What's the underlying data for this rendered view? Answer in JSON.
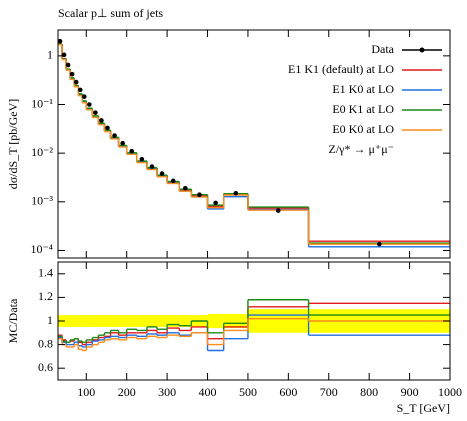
{
  "chart_data": [
    {
      "type": "histogram",
      "title": "Scalar p⊥ sum of jets",
      "y_label": "dσ/dS_T [pb/GeV]",
      "bins": [
        30,
        40,
        50,
        60,
        70,
        80,
        90,
        100,
        115,
        130,
        145,
        160,
        180,
        200,
        225,
        250,
        275,
        300,
        330,
        360,
        400,
        440,
        500,
        650,
        1000
      ],
      "xlim": [
        30,
        1000
      ],
      "xticks": [
        100,
        200,
        300,
        400,
        500,
        600,
        700,
        800,
        900,
        1000
      ],
      "xtick_labels": false,
      "log_y": true,
      "ylim": [
        7e-05,
        3.4
      ],
      "yticks": [
        {
          "value": 0.0001,
          "label": "10⁻⁴"
        },
        {
          "value": 0.001,
          "label": "10⁻³"
        },
        {
          "value": 0.01,
          "label": "10⁻²"
        },
        {
          "value": 0.1,
          "label": "10⁻¹"
        },
        1
      ],
      "legend": "upper right",
      "annotation": "Z/γ* → μ⁺μ⁻",
      "series": [
        {
          "name": "Data",
          "color": "#000000",
          "style": "points",
          "values": [
            2.0,
            1.05,
            0.65,
            0.42,
            0.29,
            0.2,
            0.145,
            0.1,
            0.068,
            0.047,
            0.033,
            0.023,
            0.016,
            0.011,
            0.0075,
            0.0053,
            0.0038,
            0.0027,
            0.0019,
            0.0014,
            0.00095,
            0.0015,
            0.00066,
            0.000135
          ]
        },
        {
          "name": "E1 K1 (default) at LO",
          "color": "#e41a1c",
          "style": "step",
          "values": [
            1.76,
            0.88,
            0.533,
            0.349,
            0.247,
            0.164,
            0.116,
            0.082,
            0.0571,
            0.0404,
            0.0287,
            0.0207,
            0.0141,
            0.0099,
            0.00675,
            0.00488,
            0.00342,
            0.00254,
            0.00175,
            0.00133,
            0.000808,
            0.001425,
            0.000739,
            0.000155
          ]
        },
        {
          "name": "E1 K0 at LO",
          "color": "#1f6fe0",
          "style": "step",
          "values": [
            1.72,
            0.861,
            0.52,
            0.336,
            0.238,
            0.158,
            0.113,
            0.08,
            0.0564,
            0.0395,
            0.0284,
            0.02,
            0.0138,
            0.00968,
            0.00653,
            0.00472,
            0.00334,
            0.00243,
            0.00167,
            0.00126,
            0.000713,
            0.001275,
            0.000693,
            0.000119
          ]
        },
        {
          "name": "E0 K1 at LO",
          "color": "#1a8a1a",
          "style": "step",
          "values": [
            1.74,
            0.872,
            0.533,
            0.353,
            0.247,
            0.166,
            0.119,
            0.084,
            0.0585,
            0.0414,
            0.0297,
            0.0212,
            0.0144,
            0.0102,
            0.0069,
            0.00504,
            0.00353,
            0.00262,
            0.00182,
            0.0014,
            0.000855,
            0.00147,
            0.000779,
            0.000142
          ]
        },
        {
          "name": "E0 K0 at LO",
          "color": "#ff8c1a",
          "style": "step",
          "values": [
            1.7,
            0.84,
            0.507,
            0.328,
            0.232,
            0.152,
            0.109,
            0.078,
            0.0544,
            0.0385,
            0.0277,
            0.0196,
            0.0134,
            0.00946,
            0.00638,
            0.00461,
            0.00327,
            0.00238,
            0.00165,
            0.00126,
            0.00076,
            0.00138,
            0.000673,
            0.000135
          ]
        }
      ]
    },
    {
      "type": "histogram",
      "y_label": "MC/Data",
      "x_label": "S_T [GeV]",
      "bins": [
        30,
        40,
        50,
        60,
        70,
        80,
        90,
        100,
        115,
        130,
        145,
        160,
        180,
        200,
        225,
        250,
        275,
        300,
        330,
        360,
        400,
        440,
        500,
        650,
        1000
      ],
      "xlim": [
        30,
        1000
      ],
      "xticks": [
        100,
        200,
        300,
        400,
        500,
        600,
        700,
        800,
        900,
        1000
      ],
      "xtick_labels": true,
      "log_y": false,
      "ylim": [
        0.5,
        1.5
      ],
      "yticks": [
        0.6,
        0.8,
        1,
        1.2,
        1.4
      ],
      "band_color": "#ffff00",
      "band": [
        0.05,
        0.05,
        0.05,
        0.05,
        0.05,
        0.05,
        0.05,
        0.05,
        0.05,
        0.05,
        0.05,
        0.05,
        0.05,
        0.05,
        0.05,
        0.05,
        0.05,
        0.05,
        0.05,
        0.05,
        0.06,
        0.06,
        0.1,
        0.1
      ],
      "series": [
        {
          "color": "#e41a1c",
          "style": "step",
          "values": [
            0.88,
            0.84,
            0.82,
            0.83,
            0.85,
            0.82,
            0.8,
            0.82,
            0.84,
            0.86,
            0.87,
            0.9,
            0.88,
            0.9,
            0.9,
            0.92,
            0.9,
            0.94,
            0.92,
            0.95,
            0.85,
            0.95,
            1.12,
            1.15
          ]
        },
        {
          "color": "#1f6fe0",
          "style": "step",
          "values": [
            0.86,
            0.82,
            0.8,
            0.8,
            0.82,
            0.79,
            0.78,
            0.8,
            0.83,
            0.84,
            0.86,
            0.87,
            0.86,
            0.88,
            0.87,
            0.89,
            0.88,
            0.9,
            0.88,
            0.9,
            0.75,
            0.85,
            1.05,
            0.88
          ]
        },
        {
          "color": "#1a8a1a",
          "style": "step",
          "values": [
            0.87,
            0.83,
            0.82,
            0.84,
            0.85,
            0.83,
            0.82,
            0.84,
            0.86,
            0.88,
            0.9,
            0.92,
            0.9,
            0.93,
            0.92,
            0.95,
            0.93,
            0.97,
            0.96,
            1.0,
            0.9,
            0.98,
            1.18,
            1.05
          ]
        },
        {
          "color": "#ff8c1a",
          "style": "step",
          "values": [
            0.85,
            0.8,
            0.78,
            0.78,
            0.8,
            0.76,
            0.75,
            0.78,
            0.8,
            0.82,
            0.84,
            0.85,
            0.84,
            0.86,
            0.85,
            0.87,
            0.86,
            0.88,
            0.87,
            0.9,
            0.8,
            0.92,
            1.02,
            1.0
          ]
        }
      ]
    }
  ]
}
